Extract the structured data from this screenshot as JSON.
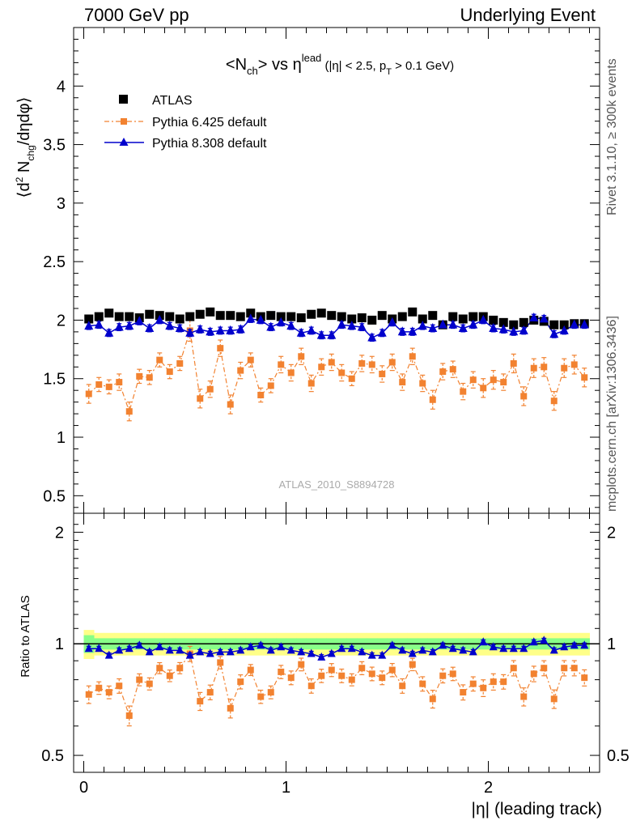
{
  "header": {
    "energy_label": "7000 GeV pp",
    "analysis_type": "Underlying Event"
  },
  "side": {
    "rivet": "Rivet 3.1.10, ≥ 300k events",
    "mcplots": "mcplots.cern.ch [arXiv:1306.3436]"
  },
  "chart_data": [
    {
      "type": "scatter",
      "panel": "main",
      "title_parts": {
        "a": "<N",
        "a_sub": "ch",
        "b": "> vs η",
        "b_sup": "lead",
        "c": " (|η| < 2.5, p",
        "c_sub": "T",
        "d": " > 0.1 GeV)"
      },
      "ylabel_parts": {
        "a": "⟨d",
        "a_sup": "2",
        "b": " N",
        "b_sub": "chg",
        "c": "/dηdφ⟩"
      },
      "xlim": [
        -0.05,
        2.55
      ],
      "ylim": [
        0.35,
        4.5
      ],
      "yticks": [
        0.5,
        1,
        1.5,
        2,
        2.5,
        3,
        3.5,
        4
      ],
      "ytick_labels": [
        "0.5",
        "1",
        "1.5",
        "2",
        "2.5",
        "3",
        "3.5",
        "4"
      ],
      "watermark": "ATLAS_2010_S8894728",
      "legend_position": "top-left",
      "x": [
        0.025,
        0.075,
        0.125,
        0.175,
        0.225,
        0.275,
        0.325,
        0.375,
        0.425,
        0.475,
        0.525,
        0.575,
        0.625,
        0.675,
        0.725,
        0.775,
        0.825,
        0.875,
        0.925,
        0.975,
        1.025,
        1.075,
        1.125,
        1.175,
        1.225,
        1.275,
        1.325,
        1.375,
        1.425,
        1.475,
        1.525,
        1.575,
        1.625,
        1.675,
        1.725,
        1.775,
        1.825,
        1.875,
        1.925,
        1.975,
        2.025,
        2.075,
        2.125,
        2.175,
        2.225,
        2.275,
        2.325,
        2.375,
        2.425,
        2.475
      ],
      "series": [
        {
          "name": "ATLAS",
          "color": "#000000",
          "marker": "square",
          "values": [
            2.01,
            2.03,
            2.06,
            2.03,
            2.03,
            2.02,
            2.05,
            2.04,
            2.03,
            2.01,
            2.03,
            2.05,
            2.07,
            2.04,
            2.04,
            2.03,
            2.06,
            2.03,
            2.04,
            2.03,
            2.03,
            2.02,
            2.05,
            2.06,
            2.04,
            2.03,
            2.01,
            2.02,
            2.0,
            2.04,
            2.01,
            2.03,
            2.07,
            2.01,
            2.04,
            1.96,
            2.03,
            2.01,
            2.03,
            2.03,
            2.0,
            1.98,
            1.96,
            1.98,
            2.0,
            1.99,
            1.96,
            1.96,
            1.97,
            1.97
          ]
        },
        {
          "name": "Pythia 6.425 default",
          "color": "#f28230",
          "marker": "square",
          "values": [
            1.37,
            1.45,
            1.43,
            1.47,
            1.22,
            1.52,
            1.51,
            1.66,
            1.56,
            1.63,
            1.91,
            1.33,
            1.41,
            1.76,
            1.28,
            1.57,
            1.66,
            1.36,
            1.44,
            1.62,
            1.55,
            1.69,
            1.46,
            1.6,
            1.64,
            1.55,
            1.5,
            1.63,
            1.62,
            1.54,
            1.64,
            1.47,
            1.69,
            1.46,
            1.32,
            1.56,
            1.58,
            1.39,
            1.49,
            1.42,
            1.49,
            1.47,
            1.63,
            1.35,
            1.59,
            1.6,
            1.31,
            1.59,
            1.62,
            1.51
          ],
          "errors": [
            0.08,
            0.06,
            0.06,
            0.07,
            0.08,
            0.06,
            0.06,
            0.06,
            0.06,
            0.06,
            0.09,
            0.08,
            0.07,
            0.07,
            0.08,
            0.07,
            0.06,
            0.06,
            0.06,
            0.07,
            0.07,
            0.07,
            0.07,
            0.07,
            0.07,
            0.07,
            0.06,
            0.07,
            0.07,
            0.07,
            0.07,
            0.07,
            0.07,
            0.07,
            0.08,
            0.07,
            0.07,
            0.07,
            0.07,
            0.08,
            0.08,
            0.07,
            0.08,
            0.08,
            0.08,
            0.08,
            0.08,
            0.08,
            0.08,
            0.08
          ]
        },
        {
          "name": "Pythia 8.308 default",
          "color": "#0000cc",
          "marker": "triangle",
          "values": [
            1.95,
            1.96,
            1.89,
            1.94,
            1.95,
            1.99,
            1.93,
            2.0,
            1.95,
            1.93,
            1.89,
            1.92,
            1.9,
            1.91,
            1.91,
            1.92,
            2.01,
            2.0,
            1.94,
            1.98,
            1.95,
            1.89,
            1.91,
            1.87,
            1.87,
            1.96,
            1.95,
            1.94,
            1.85,
            1.89,
            1.98,
            1.9,
            1.9,
            1.95,
            1.93,
            1.96,
            1.96,
            1.93,
            1.96,
            2.0,
            1.93,
            1.92,
            1.9,
            1.91,
            2.02,
            2.01,
            1.88,
            1.91,
            1.96,
            1.96
          ],
          "errors": [
            0.03,
            0.03,
            0.03,
            0.03,
            0.03,
            0.03,
            0.03,
            0.03,
            0.03,
            0.03,
            0.03,
            0.03,
            0.03,
            0.03,
            0.03,
            0.03,
            0.03,
            0.03,
            0.03,
            0.03,
            0.03,
            0.03,
            0.03,
            0.03,
            0.03,
            0.03,
            0.03,
            0.03,
            0.03,
            0.03,
            0.03,
            0.03,
            0.03,
            0.03,
            0.03,
            0.03,
            0.03,
            0.03,
            0.03,
            0.03,
            0.03,
            0.03,
            0.03,
            0.03,
            0.03,
            0.03,
            0.03,
            0.03,
            0.03,
            0.03
          ]
        }
      ]
    },
    {
      "type": "scatter",
      "panel": "ratio",
      "ylabel": "Ratio to ATLAS",
      "xlabel": "|η| (leading track)",
      "xlim": [
        -0.05,
        2.55
      ],
      "ylim": [
        0.45,
        2.25
      ],
      "log_y": true,
      "yticks": [
        0.5,
        1,
        2
      ],
      "ytick_labels": [
        "0.5",
        "1",
        "2"
      ],
      "xticks": [
        0,
        1,
        2
      ],
      "xtick_labels": [
        "0",
        "1",
        "2"
      ],
      "bands": [
        {
          "color": "#ffff88",
          "halfwidth": 0.07
        },
        {
          "color": "#88ff88",
          "halfwidth": 0.035
        }
      ],
      "series": [
        {
          "name": "Pythia 6.425 default",
          "color": "#f28230",
          "marker": "square",
          "values": [
            0.73,
            0.76,
            0.74,
            0.77,
            0.64,
            0.8,
            0.78,
            0.86,
            0.82,
            0.86,
            0.94,
            0.7,
            0.74,
            0.89,
            0.67,
            0.79,
            0.85,
            0.72,
            0.74,
            0.84,
            0.81,
            0.88,
            0.77,
            0.82,
            0.85,
            0.82,
            0.8,
            0.86,
            0.83,
            0.81,
            0.85,
            0.77,
            0.88,
            0.78,
            0.71,
            0.82,
            0.83,
            0.74,
            0.78,
            0.76,
            0.79,
            0.79,
            0.86,
            0.72,
            0.83,
            0.86,
            0.71,
            0.86,
            0.86,
            0.81
          ]
        },
        {
          "name": "Pythia 8.308 default",
          "color": "#0000cc",
          "marker": "triangle",
          "values": [
            0.97,
            0.97,
            0.93,
            0.96,
            0.97,
            0.99,
            0.95,
            0.98,
            0.96,
            0.96,
            0.93,
            0.95,
            0.94,
            0.95,
            0.95,
            0.96,
            0.98,
            0.99,
            0.96,
            0.98,
            0.96,
            0.95,
            0.94,
            0.92,
            0.94,
            0.97,
            0.97,
            0.95,
            0.93,
            0.93,
            0.99,
            0.96,
            0.94,
            0.96,
            0.95,
            0.99,
            0.97,
            0.96,
            0.95,
            1.01,
            0.98,
            0.97,
            0.97,
            0.97,
            1.01,
            1.02,
            0.96,
            0.98,
            0.99,
            0.99
          ]
        }
      ]
    }
  ]
}
